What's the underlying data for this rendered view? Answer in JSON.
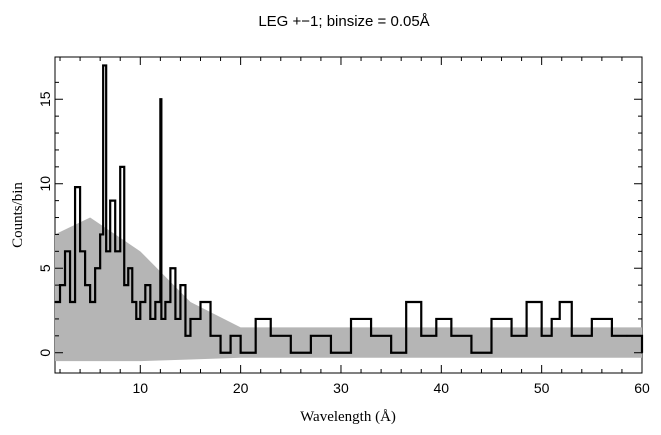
{
  "chart_data": {
    "type": "line",
    "title": "LEG +−1; binsize = 0.05Å",
    "xlabel": "Wavelength (Å)",
    "ylabel": "Counts/bin",
    "xlim": [
      1.5,
      60
    ],
    "ylim": [
      -1.2,
      17.5
    ],
    "x_ticks": [
      10,
      20,
      30,
      40,
      50,
      60
    ],
    "y_ticks": [
      0,
      5,
      10,
      15
    ],
    "grid": false,
    "legend": "none",
    "series": [
      {
        "style": "dark-histogram",
        "color": "#000000",
        "x": [
          1.5,
          2.0,
          2.5,
          3.0,
          3.5,
          4.0,
          4.5,
          5.0,
          5.5,
          6.0,
          6.3,
          6.6,
          7.0,
          7.5,
          8.0,
          8.4,
          8.8,
          9.2,
          9.6,
          10.0,
          10.5,
          11.0,
          11.5,
          12.0,
          12.1,
          12.5,
          13.0,
          13.5,
          14.0,
          14.5,
          15.0,
          16.0,
          17.0,
          18.0,
          19.0,
          20.0,
          21.5,
          23.0,
          25.0,
          27.0,
          29.0,
          31.0,
          33.0,
          35.0,
          36.5,
          38.0,
          39.5,
          41.0,
          43.0,
          45.0,
          47.0,
          48.5,
          50.0,
          51.0,
          51.8,
          53.0,
          55.0,
          57.0,
          58.5,
          60.0
        ],
        "y": [
          3,
          4,
          6,
          3,
          9.8,
          6,
          4,
          3,
          5,
          7,
          17,
          6,
          9,
          6,
          11,
          4,
          5,
          3,
          2,
          3,
          4,
          2,
          3,
          15,
          2,
          3,
          5,
          2,
          4,
          1,
          2,
          3,
          1,
          0,
          1,
          0,
          2,
          1,
          0,
          1,
          0,
          2,
          1,
          0,
          3,
          1,
          2,
          1,
          0,
          2,
          1,
          3,
          1,
          2,
          3,
          1,
          2,
          1,
          1,
          0
        ]
      },
      {
        "style": "grey-error-band",
        "color": "#b5b5b5",
        "x": [
          1.5,
          5.0,
          10.0,
          15.0,
          20.0,
          30.0,
          40.0,
          50.0,
          60.0
        ],
        "y_high": [
          7,
          8,
          6,
          3,
          1.5,
          1.5,
          1.5,
          1.5,
          1.5
        ],
        "y_low": [
          -0.5,
          -0.5,
          -0.5,
          -0.4,
          -0.3,
          -0.3,
          -0.3,
          -0.3,
          -0.3
        ]
      }
    ]
  }
}
